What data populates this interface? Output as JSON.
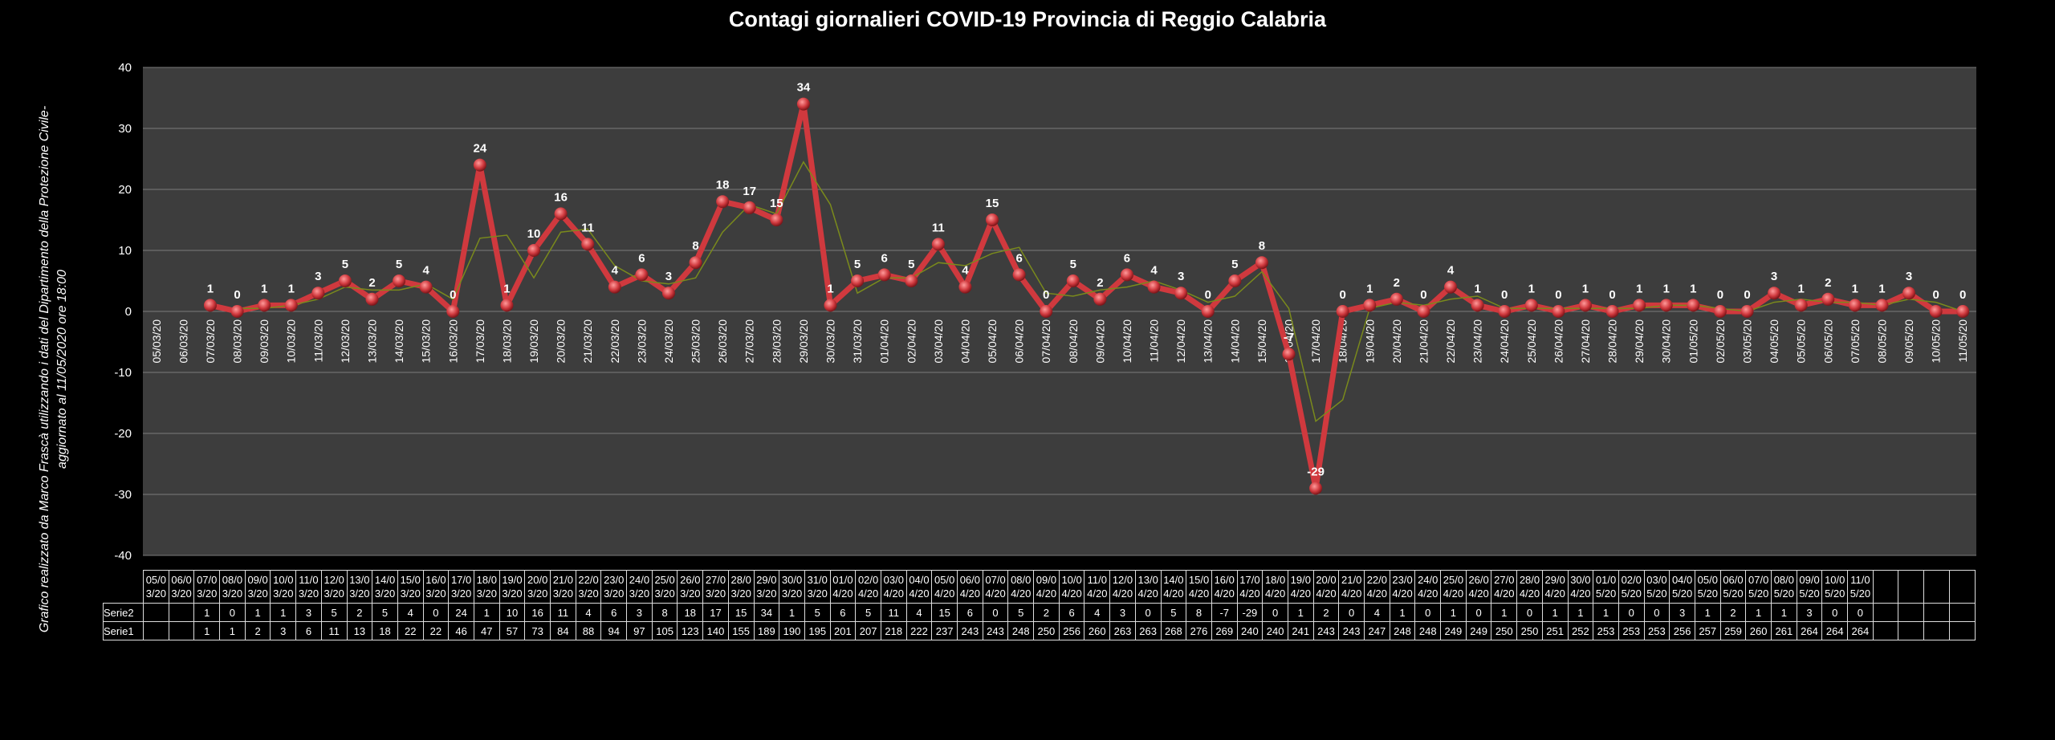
{
  "chart_data": {
    "type": "line",
    "title": "Contagi  giornalieri COVID-19 Provincia di Reggio Calabria",
    "side_note": [
      "Grafico  realizzato da Marco Frascà  utilizzando i dati del Dipartimento  della Protezione Civile-",
      "aggiornato al  11/05/2020 ore 18:00"
    ],
    "categories": [
      "05/03/20",
      "06/03/20",
      "07/03/20",
      "08/03/20",
      "09/03/20",
      "10/03/20",
      "11/03/20",
      "12/03/20",
      "13/03/20",
      "14/03/20",
      "15/03/20",
      "16/03/20",
      "17/03/20",
      "18/03/20",
      "19/03/20",
      "20/03/20",
      "21/03/20",
      "22/03/20",
      "23/03/20",
      "24/03/20",
      "25/03/20",
      "26/03/20",
      "27/03/20",
      "28/03/20",
      "29/03/20",
      "30/03/20",
      "31/03/20",
      "01/04/20",
      "02/04/20",
      "03/04/20",
      "04/04/20",
      "05/04/20",
      "06/04/20",
      "07/04/20",
      "08/04/20",
      "09/04/20",
      "10/04/20",
      "11/04/20",
      "12/04/20",
      "13/04/20",
      "14/04/20",
      "15/04/20",
      "16/04/20",
      "17/04/20",
      "18/04/20",
      "19/04/20",
      "20/04/20",
      "21/04/20",
      "22/04/20",
      "23/04/20",
      "24/04/20",
      "25/04/20",
      "26/04/20",
      "27/04/20",
      "28/04/20",
      "29/04/20",
      "30/04/20",
      "01/05/20",
      "02/05/20",
      "03/05/20",
      "04/05/20",
      "05/05/20",
      "06/05/20",
      "07/05/20",
      "08/05/20",
      "09/05/20",
      "10/05/20",
      "11/05/20"
    ],
    "series": [
      {
        "name": "Serie2",
        "color": "#d0393e",
        "values": [
          null,
          null,
          1,
          0,
          1,
          1,
          3,
          5,
          2,
          5,
          4,
          0,
          24,
          1,
          10,
          16,
          11,
          4,
          6,
          3,
          8,
          18,
          17,
          15,
          34,
          1,
          5,
          6,
          5,
          11,
          4,
          15,
          6,
          0,
          5,
          2,
          6,
          4,
          3,
          0,
          5,
          8,
          -7,
          -29,
          0,
          1,
          2,
          0,
          4,
          1,
          0,
          1,
          0,
          1,
          0,
          1,
          1,
          1,
          0,
          0,
          3,
          1,
          2,
          1,
          1,
          3,
          0,
          0
        ]
      }
    ],
    "trendline": {
      "color": "#7a8a1c",
      "values": [
        null,
        null,
        null,
        0.5,
        0.5,
        1,
        2,
        4,
        3.5,
        3.5,
        4.5,
        2,
        12,
        12.5,
        5.5,
        13,
        13.5,
        7.5,
        5,
        4.5,
        5.5,
        13,
        17.5,
        16,
        24.5,
        17.5,
        3,
        5.5,
        5.5,
        8,
        7.5,
        9.5,
        10.5,
        3,
        2.5,
        3.5,
        4,
        5,
        3.5,
        1.5,
        2.5,
        6.5,
        0.5,
        -18,
        -14.5,
        0.5,
        1.5,
        1,
        2,
        2.5,
        0.5,
        0.5,
        0.5,
        0.5,
        0.5,
        0.5,
        1,
        1,
        0.5,
        0,
        1.5,
        2,
        1.5,
        1.5,
        1,
        2,
        1.5,
        0
      ]
    },
    "ylim": [
      -40,
      40
    ],
    "yticks": [
      -40,
      -30,
      -20,
      -10,
      0,
      10,
      20,
      30,
      40
    ],
    "grid": true,
    "table": {
      "rows": [
        {
          "name": "Serie1",
          "values": [
            null,
            null,
            1,
            1,
            2,
            3,
            6,
            11,
            13,
            18,
            22,
            22,
            46,
            47,
            57,
            73,
            84,
            88,
            94,
            97,
            105,
            123,
            140,
            155,
            189,
            190,
            195,
            201,
            207,
            218,
            222,
            237,
            243,
            243,
            248,
            250,
            256,
            260,
            263,
            263,
            268,
            276,
            269,
            240,
            240,
            241,
            243,
            243,
            247,
            248,
            248,
            249,
            249,
            250,
            250,
            251,
            252,
            253,
            253,
            253,
            256,
            257,
            259,
            260,
            261,
            264,
            264,
            264
          ]
        }
      ]
    }
  }
}
